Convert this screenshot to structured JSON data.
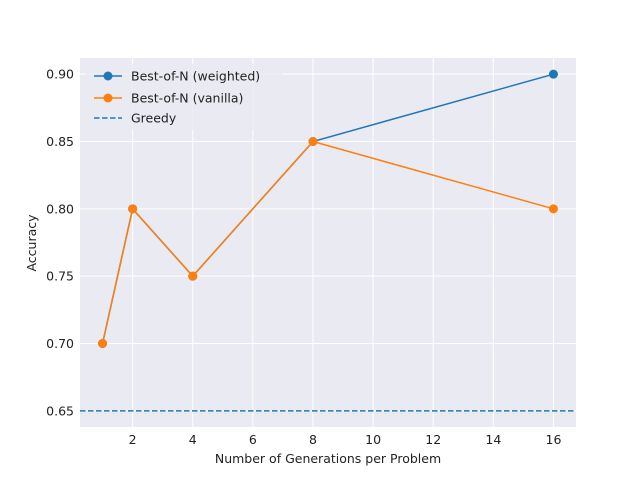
{
  "chart_data": {
    "type": "line",
    "title": "",
    "xlabel": "Number of Generations per Problem",
    "ylabel": "Accuracy",
    "xlim": [
      0.25,
      16.75
    ],
    "ylim": [
      0.638,
      0.912
    ],
    "xticks": [
      2,
      4,
      6,
      8,
      10,
      12,
      14,
      16
    ],
    "yticks": [
      0.65,
      0.7,
      0.75,
      0.8,
      0.85,
      0.9
    ],
    "xtick_labels": [
      "2",
      "4",
      "6",
      "8",
      "10",
      "12",
      "14",
      "16"
    ],
    "ytick_labels": [
      "0.65",
      "0.70",
      "0.75",
      "0.80",
      "0.85",
      "0.90"
    ],
    "grid": true,
    "legend_position": "top-left",
    "series": [
      {
        "name": "Best-of-N (weighted)",
        "color": "#1f77b4",
        "style": "solid",
        "marker": "circle",
        "x": [
          1,
          2,
          4,
          8,
          16
        ],
        "y": [
          0.7,
          0.8,
          0.75,
          0.85,
          0.9
        ]
      },
      {
        "name": "Best-of-N (vanilla)",
        "color": "#ff7f0e",
        "style": "solid",
        "marker": "circle",
        "x": [
          1,
          2,
          4,
          8,
          16
        ],
        "y": [
          0.7,
          0.8,
          0.75,
          0.85,
          0.8
        ]
      },
      {
        "name": "Greedy",
        "color": "#1f77b4",
        "style": "dashed",
        "marker": "none",
        "hline": 0.65
      }
    ]
  },
  "colors": {
    "plot_background": "#eaeaf2",
    "grid": "#ffffff"
  }
}
